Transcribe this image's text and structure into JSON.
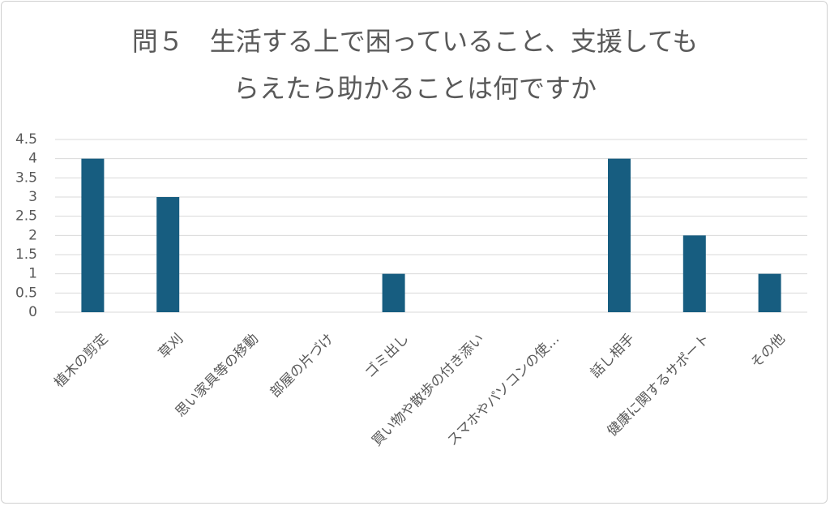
{
  "chart_data": {
    "type": "bar",
    "title": "問５　生活する上で困っていること、支援してもらえたら助かることは何ですか",
    "categories": [
      "植木の剪定",
      "草刈",
      "思い家具等の移動",
      "部屋の片づけ",
      "ゴミ出し",
      "買い物や散歩の付き添い",
      "スマホやパソコンの使…",
      "話し相手",
      "健康に関するサポート",
      "その他"
    ],
    "values": [
      4,
      3,
      0,
      0,
      1,
      0,
      0,
      4,
      2,
      1
    ],
    "color": "#175d80",
    "ylim": [
      0,
      4.5
    ],
    "yticks": [
      0,
      0.5,
      1,
      1.5,
      2,
      2.5,
      3,
      3.5,
      4,
      4.5
    ],
    "grid": true
  }
}
